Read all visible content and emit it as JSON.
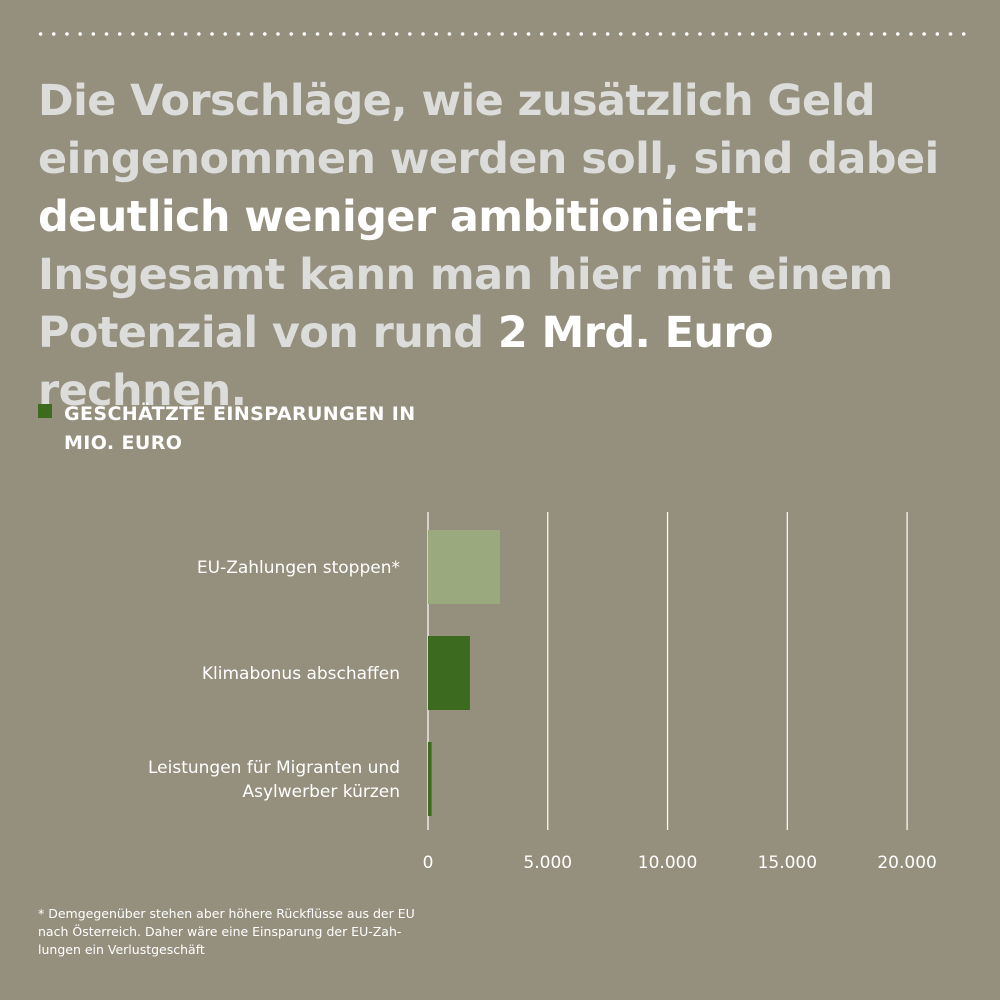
{
  "headline": {
    "parts": [
      {
        "text": "Die Vorschläge, wie zusätzlich Geld eingenommen werden soll, sind dabei ",
        "highlight": false
      },
      {
        "text": "deutlich weniger ambitioniert",
        "highlight": true
      },
      {
        "text": ": Insgesamt kann man hier mit einem Potenzial von rund ",
        "highlight": false
      },
      {
        "text": "2 Mrd. Euro",
        "highlight": true
      },
      {
        "text": " rechnen.",
        "highlight": false
      }
    ]
  },
  "legend": {
    "label": "GESCHÄTZTE EINSPARUNGEN IN MIO. EURO",
    "color": "#3c6b1f"
  },
  "footnote": "* Demgegenüber stehen aber höhere Rückflüsse aus der EU\nnach Österreich. Daher wäre eine Einsparung der EU-Zah-\nlungen ein Verlustgeschäft",
  "colors": {
    "background": "#958f7d",
    "bar_dark": "#3c6b1f",
    "bar_light": "#9aaa7e",
    "headline_text": "#dcdcda",
    "highlight_text": "#ffffff"
  },
  "chart_data": {
    "type": "bar",
    "orientation": "horizontal",
    "categories": [
      "EU-Zahlungen stoppen*",
      "Klimabonus abschaffen",
      "Leistungen für Migranten und Asylwerber kürzen"
    ],
    "category_lines": [
      [
        "EU-Zahlungen stoppen*"
      ],
      [
        "Klimabonus abschaffen"
      ],
      [
        "Leistungen für Migranten und",
        "Asylwerber kürzen"
      ]
    ],
    "values": [
      3000,
      1750,
      150
    ],
    "bar_colors": [
      "#9aaa7e",
      "#3c6b1f",
      "#3c6b1f"
    ],
    "xlim": [
      0,
      22000
    ],
    "xticks": [
      0,
      5000,
      10000,
      15000,
      20000
    ],
    "xtick_labels": [
      "0",
      "5.000",
      "10.000",
      "15.000",
      "20.000"
    ],
    "grid": true,
    "legend_position": "top-left",
    "series_label": "GESCHÄTZTE EINSPARUNGEN IN MIO. EURO"
  }
}
